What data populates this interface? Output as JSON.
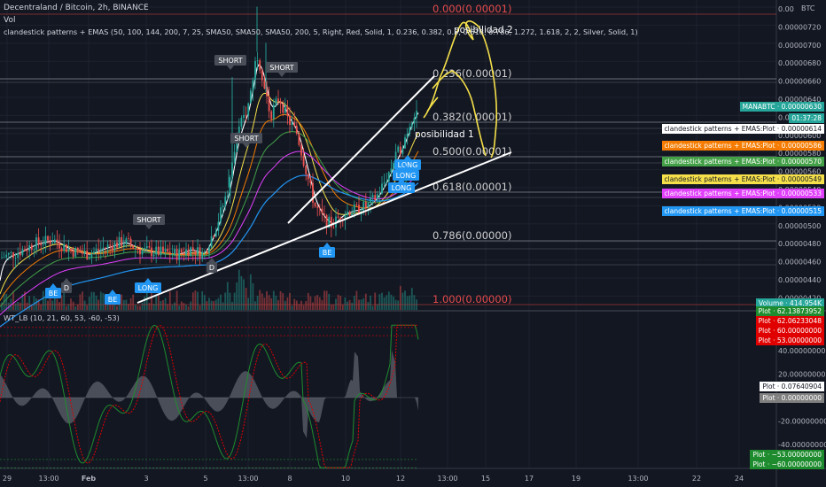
{
  "header": {
    "symbol": "Decentraland / Bitcoin, 2h, BINANCE",
    "vol": "Vol",
    "indicator": "clandestick patterns + EMAS (50, 100, 144, 200, 7, 25, SMA50, SMA50, SMA50, 200, 5, Right, Red, Solid, 1, 0.236, 0.382, 0.5, 0.618, 0.786, 1.272, 1.618, 2, 2, Silver, Solid, 1)",
    "oscillator": "WT_LB (10, 21, 60, 53, -60, -53)"
  },
  "fib_levels": [
    {
      "label": "0.000(0.00001)",
      "color": "#e54b4b"
    },
    {
      "label": "0.236(0.00001)",
      "color": "#cfcfcf"
    },
    {
      "label": "0.382(0.00001)",
      "color": "#cfcfcf"
    },
    {
      "label": "0.500(0.00001)",
      "color": "#cfcfcf"
    },
    {
      "label": "0.618(0.00001)",
      "color": "#cfcfcf"
    },
    {
      "label": "0.786(0.00000)",
      "color": "#cfcfcf"
    },
    {
      "label": "1.000(0.00000)",
      "color": "#e54b4b"
    }
  ],
  "price_axis": {
    "unit": "BTC",
    "ticks": [
      "0.00",
      "0.00000720",
      "0.00000700",
      "0.00000680",
      "0.00000660",
      "0.00000640",
      "0.00000620",
      "0.00000600",
      "0.00000580",
      "0.00000560",
      "0.00000540",
      "0.00000520",
      "0.00000500",
      "0.00000480",
      "0.00000460",
      "0.00000440",
      "0.00000420"
    ]
  },
  "osc_axis": {
    "ticks": [
      "40.00000000",
      "20.00000000",
      "-20.00000000",
      "-40.00000000"
    ]
  },
  "time_axis": {
    "ticks": [
      "29",
      "13:00",
      "Feb",
      "3",
      "5",
      "13:00",
      "8",
      "10",
      "12",
      "13:00",
      "15",
      "17",
      "19",
      "13:00",
      "22",
      "24"
    ]
  },
  "price_tags": [
    {
      "text": "MANABTC · 0.00000630",
      "bg": "#26a69a",
      "fg": "#ffffff"
    },
    {
      "text": "01:37:28",
      "bg": "#26a69a",
      "fg": "#ffffff"
    },
    {
      "text": "clandestick patterns + EMAS:Plot · 0.00000614",
      "bg": "#ffffff",
      "fg": "#131722"
    },
    {
      "text": "clandestick patterns + EMAS:Plot · 0.00000586",
      "bg": "#f57c00",
      "fg": "#ffffff"
    },
    {
      "text": "clandestick patterns + EMAS:Plot · 0.00000570",
      "bg": "#43a047",
      "fg": "#ffffff"
    },
    {
      "text": "clandestick patterns + EMAS:Plot · 0.00000549",
      "bg": "#f5e04a",
      "fg": "#131722"
    },
    {
      "text": "clandestick patterns + EMAS:Plot · 0.00000533",
      "bg": "#e040fb",
      "fg": "#ffffff"
    },
    {
      "text": "clandestick patterns + EMAS:Plot · 0.00000515",
      "bg": "#2196f3",
      "fg": "#ffffff"
    },
    {
      "text": "Volume · 414.954K",
      "bg": "#26a69a",
      "fg": "#ffffff"
    }
  ],
  "osc_tags": [
    {
      "text": "Plot · 62.13873952",
      "bg": "#1e8c2e",
      "fg": "#ffffff"
    },
    {
      "text": "Plot · 62.06233048",
      "bg": "#e00000",
      "fg": "#ffffff"
    },
    {
      "text": "Plot · 60.00000000",
      "bg": "#e00000",
      "fg": "#ffffff"
    },
    {
      "text": "Plot · 53.00000000",
      "bg": "#e00000",
      "fg": "#ffffff"
    },
    {
      "text": "Plot · 0.07640904",
      "bg": "#ffffff",
      "fg": "#131722"
    },
    {
      "text": "Plot · 0.00000000",
      "bg": "#808080",
      "fg": "#ffffff"
    },
    {
      "text": "Plot · −53.00000000",
      "bg": "#1e8c2e",
      "fg": "#ffffff"
    },
    {
      "text": "Plot · −60.00000000",
      "bg": "#1e8c2e",
      "fg": "#ffffff"
    }
  ],
  "signals": [
    {
      "text": "SHORT",
      "kind": "short"
    },
    {
      "text": "SHORT",
      "kind": "short"
    },
    {
      "text": "SHORT",
      "kind": "short"
    },
    {
      "text": "SHORT",
      "kind": "short"
    },
    {
      "text": "BE",
      "kind": "long"
    },
    {
      "text": "D",
      "kind": "short"
    },
    {
      "text": "BE",
      "kind": "long"
    },
    {
      "text": "LONG",
      "kind": "long"
    },
    {
      "text": "D",
      "kind": "short"
    },
    {
      "text": "BE",
      "kind": "long"
    },
    {
      "text": "LONG",
      "kind": "long"
    },
    {
      "text": "LONG",
      "kind": "long"
    },
    {
      "text": "LONG",
      "kind": "long"
    }
  ],
  "annotations": {
    "scenario_1": "posibilidad 1",
    "scenario_2": "posibilidad 2"
  },
  "colors": {
    "background": "#131722",
    "up": "#26a69a",
    "down": "#ef5350",
    "trendline": "#ffffff",
    "drawing": "#f5e04a",
    "signal_long": "#2196f3",
    "signal_short": "#4a4e58",
    "wt1": "#1e8c2e",
    "wt2": "#e00000",
    "histogram": "#787b86"
  }
}
